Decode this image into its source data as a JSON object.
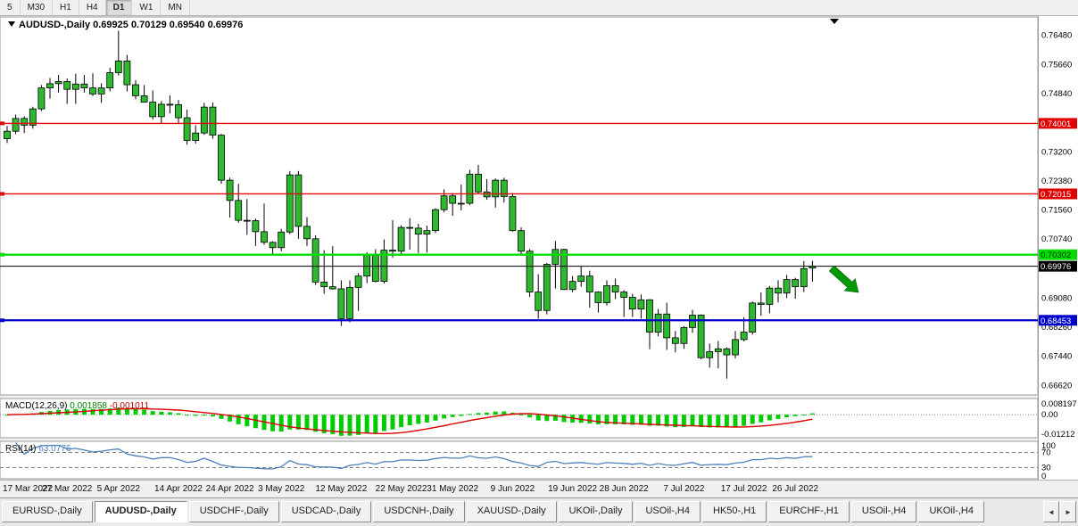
{
  "toolbar": {
    "timeframes": [
      {
        "label": "5",
        "active": false
      },
      {
        "label": "M30",
        "active": false
      },
      {
        "label": "H1",
        "active": false
      },
      {
        "label": "H4",
        "active": false
      },
      {
        "label": "D1",
        "active": true
      },
      {
        "label": "W1",
        "active": false
      },
      {
        "label": "MN",
        "active": false
      }
    ]
  },
  "chart": {
    "symbol_title": "AUDUSD-,Daily",
    "ohlc_display": {
      "open": "0.69925",
      "high": "0.70129",
      "low": "0.69540",
      "close": "0.69976"
    },
    "y_axis_labels": [
      "0.76480",
      "0.75660",
      "0.74840",
      "0.73200",
      "0.72380",
      "0.71560",
      "0.70740",
      "0.69080",
      "0.68260",
      "0.67440",
      "0.66620"
    ],
    "levels": [
      {
        "name": "resistance-level-1",
        "label": "0.74001",
        "value": 0.74001,
        "color": "#e00000",
        "text_color": "#ffffff",
        "width": 1.4
      },
      {
        "name": "resistance-level-2",
        "label": "0.72015",
        "value": 0.72015,
        "color": "#e00000",
        "text_color": "#ffffff",
        "width": 1.4
      },
      {
        "name": "breakout-level",
        "label": "0.70302",
        "value": 0.70302,
        "color": "#00dc00",
        "text_color": "#003300",
        "width": 2.4
      },
      {
        "name": "support-level",
        "label": "0.68453",
        "value": 0.68453,
        "color": "#0000cc",
        "text_color": "#ffffff",
        "width": 2.2
      }
    ],
    "current_price": {
      "value": 0.69976,
      "label": "0.69976",
      "color": "#000000"
    },
    "annotation_arrow": {
      "color": "#009900"
    }
  },
  "chart_data": {
    "type": "candlestick",
    "symbol": "AUDUSD",
    "timeframe": "Daily",
    "price_range": [
      0.6635,
      0.77
    ],
    "ohlc": [
      [
        0.7357,
        0.7393,
        0.7345,
        0.7378
      ],
      [
        0.7378,
        0.7425,
        0.737,
        0.7414
      ],
      [
        0.7414,
        0.742,
        0.7373,
        0.7395
      ],
      [
        0.7395,
        0.7447,
        0.7385,
        0.7441
      ],
      [
        0.7441,
        0.7508,
        0.7435,
        0.75
      ],
      [
        0.75,
        0.7528,
        0.747,
        0.7512
      ],
      [
        0.7512,
        0.7537,
        0.7487,
        0.7518
      ],
      [
        0.7518,
        0.7527,
        0.7455,
        0.7496
      ],
      [
        0.7496,
        0.754,
        0.7455,
        0.7511
      ],
      [
        0.7511,
        0.7537,
        0.7487,
        0.75
      ],
      [
        0.75,
        0.7541,
        0.7477,
        0.7483
      ],
      [
        0.7483,
        0.7513,
        0.7458,
        0.75
      ],
      [
        0.75,
        0.7557,
        0.749,
        0.7543
      ],
      [
        0.7543,
        0.7661,
        0.7535,
        0.7576
      ],
      [
        0.7576,
        0.7593,
        0.749,
        0.7509
      ],
      [
        0.7509,
        0.7522,
        0.7468,
        0.7478
      ],
      [
        0.7478,
        0.7508,
        0.7459,
        0.746
      ],
      [
        0.746,
        0.7493,
        0.7411,
        0.7419
      ],
      [
        0.7419,
        0.7463,
        0.7401,
        0.7454
      ],
      [
        0.7454,
        0.7479,
        0.7428,
        0.7453
      ],
      [
        0.7453,
        0.7466,
        0.7398,
        0.7416
      ],
      [
        0.7416,
        0.7439,
        0.734,
        0.7352
      ],
      [
        0.7352,
        0.7395,
        0.7343,
        0.7373
      ],
      [
        0.7373,
        0.7458,
        0.7368,
        0.7446
      ],
      [
        0.7446,
        0.7459,
        0.7357,
        0.7367
      ],
      [
        0.7367,
        0.737,
        0.723,
        0.724
      ],
      [
        0.724,
        0.7247,
        0.7135,
        0.7183
      ],
      [
        0.7183,
        0.723,
        0.712,
        0.7127
      ],
      [
        0.7127,
        0.7187,
        0.7086,
        0.7126
      ],
      [
        0.7126,
        0.7132,
        0.7055,
        0.7095
      ],
      [
        0.7095,
        0.7174,
        0.7058,
        0.7065
      ],
      [
        0.7065,
        0.7068,
        0.7029,
        0.705
      ],
      [
        0.705,
        0.7103,
        0.704,
        0.7094
      ],
      [
        0.7094,
        0.7266,
        0.7088,
        0.7255
      ],
      [
        0.7255,
        0.7266,
        0.7075,
        0.711
      ],
      [
        0.711,
        0.7136,
        0.7055,
        0.7075
      ],
      [
        0.7075,
        0.7085,
        0.6945,
        0.6953
      ],
      [
        0.6953,
        0.7043,
        0.692,
        0.694
      ],
      [
        0.694,
        0.7054,
        0.6932,
        0.6934
      ],
      [
        0.6934,
        0.6958,
        0.6829,
        0.685
      ],
      [
        0.685,
        0.6958,
        0.684,
        0.6938
      ],
      [
        0.6938,
        0.6978,
        0.6872,
        0.697
      ],
      [
        0.697,
        0.7037,
        0.695,
        0.7028
      ],
      [
        0.7028,
        0.7046,
        0.6952,
        0.6955
      ],
      [
        0.6955,
        0.7073,
        0.6949,
        0.7043
      ],
      [
        0.7043,
        0.7127,
        0.7022,
        0.704
      ],
      [
        0.704,
        0.7113,
        0.7033,
        0.7107
      ],
      [
        0.7107,
        0.7133,
        0.7044,
        0.7105
      ],
      [
        0.7105,
        0.7117,
        0.7035,
        0.7088
      ],
      [
        0.7088,
        0.7112,
        0.7036,
        0.7098
      ],
      [
        0.7098,
        0.7161,
        0.7091,
        0.7157
      ],
      [
        0.7157,
        0.7214,
        0.715,
        0.7196
      ],
      [
        0.7196,
        0.7204,
        0.714,
        0.7175
      ],
      [
        0.7175,
        0.7228,
        0.7155,
        0.7175
      ],
      [
        0.7175,
        0.7269,
        0.717,
        0.7257
      ],
      [
        0.7257,
        0.7283,
        0.72,
        0.7207
      ],
      [
        0.7207,
        0.7243,
        0.7185,
        0.7193
      ],
      [
        0.7193,
        0.7245,
        0.7163,
        0.724
      ],
      [
        0.724,
        0.7247,
        0.7177,
        0.7194
      ],
      [
        0.7194,
        0.7204,
        0.7095,
        0.7098
      ],
      [
        0.7098,
        0.7107,
        0.7032,
        0.704
      ],
      [
        0.704,
        0.7046,
        0.6911,
        0.6925
      ],
      [
        0.6925,
        0.6975,
        0.685,
        0.6873
      ],
      [
        0.6873,
        0.7007,
        0.6862,
        0.7003
      ],
      [
        0.7003,
        0.7069,
        0.6935,
        0.7045
      ],
      [
        0.7045,
        0.7047,
        0.6933,
        0.6932
      ],
      [
        0.6932,
        0.697,
        0.6925,
        0.6955
      ],
      [
        0.6955,
        0.6997,
        0.694,
        0.697
      ],
      [
        0.697,
        0.6985,
        0.6881,
        0.6925
      ],
      [
        0.6925,
        0.6927,
        0.6867,
        0.6895
      ],
      [
        0.6895,
        0.6958,
        0.6887,
        0.6943
      ],
      [
        0.6943,
        0.6963,
        0.6905,
        0.6925
      ],
      [
        0.6925,
        0.693,
        0.6855,
        0.691
      ],
      [
        0.691,
        0.692,
        0.6855,
        0.6877
      ],
      [
        0.6877,
        0.6918,
        0.685,
        0.6903
      ],
      [
        0.6903,
        0.6905,
        0.6764,
        0.6812
      ],
      [
        0.6812,
        0.6877,
        0.68,
        0.6863
      ],
      [
        0.6863,
        0.6895,
        0.6762,
        0.6796
      ],
      [
        0.6796,
        0.6815,
        0.6755,
        0.678
      ],
      [
        0.678,
        0.6829,
        0.6765,
        0.6825
      ],
      [
        0.6825,
        0.6875,
        0.681,
        0.686
      ],
      [
        0.686,
        0.6862,
        0.6735,
        0.674
      ],
      [
        0.674,
        0.678,
        0.6712,
        0.6757
      ],
      [
        0.6757,
        0.6787,
        0.671,
        0.6765
      ],
      [
        0.6765,
        0.6769,
        0.6681,
        0.6748
      ],
      [
        0.6748,
        0.6815,
        0.6738,
        0.6791
      ],
      [
        0.6791,
        0.6854,
        0.6786,
        0.6812
      ],
      [
        0.6812,
        0.6898,
        0.6805,
        0.6894
      ],
      [
        0.6894,
        0.6924,
        0.6858,
        0.689
      ],
      [
        0.689,
        0.6942,
        0.6865,
        0.6936
      ],
      [
        0.6936,
        0.6958,
        0.6896,
        0.6922
      ],
      [
        0.6922,
        0.6973,
        0.6908,
        0.696
      ],
      [
        0.696,
        0.6965,
        0.6906,
        0.694
      ],
      [
        0.694,
        0.7012,
        0.6925,
        0.6991
      ],
      [
        0.69925,
        0.70129,
        0.6954,
        0.69976
      ]
    ],
    "x_axis_labels": [
      {
        "label": "17 Mar 2022",
        "index": 0
      },
      {
        "label": "27 Mar 2022",
        "index": 7
      },
      {
        "label": "5 Apr 2022",
        "index": 13
      },
      {
        "label": "14 Apr 2022",
        "index": 20
      },
      {
        "label": "24 Apr 2022",
        "index": 26
      },
      {
        "label": "3 May 2022",
        "index": 32
      },
      {
        "label": "12 May 2022",
        "index": 39
      },
      {
        "label": "22 May 2022",
        "index": 46
      },
      {
        "label": "31 May 2022",
        "index": 52
      },
      {
        "label": "9 Jun 2022",
        "index": 59
      },
      {
        "label": "19 Jun 2022",
        "index": 66
      },
      {
        "label": "28 Jun 2022",
        "index": 72
      },
      {
        "label": "7 Jul 2022",
        "index": 79
      },
      {
        "label": "17 Jul 2022",
        "index": 86
      },
      {
        "label": "26 Jul 2022",
        "index": 92
      }
    ]
  },
  "macd": {
    "label": "MACD(12,26,9)",
    "value_main": "0.001858",
    "value_signal": "-0.001011",
    "scale_labels": [
      "0.008197",
      "0.00",
      "-0.01212"
    ],
    "range": [
      -0.0135,
      0.0095
    ]
  },
  "rsi": {
    "label": "RSI(14)",
    "value": "63.0776",
    "scale_labels": [
      "100",
      "70",
      "30",
      "0"
    ],
    "levels": [
      70,
      30
    ],
    "color": "#4f81bd"
  },
  "tabs": {
    "items": [
      {
        "label": "EURUSD-,Daily",
        "active": false
      },
      {
        "label": "AUDUSD-,Daily",
        "active": true
      },
      {
        "label": "USDCHF-,Daily",
        "active": false
      },
      {
        "label": "USDCAD-,Daily",
        "active": false
      },
      {
        "label": "USDCNH-,Daily",
        "active": false
      },
      {
        "label": "XAUUSD-,Daily",
        "active": false
      },
      {
        "label": "UKOil-,Daily",
        "active": false
      },
      {
        "label": "USOil-,H4",
        "active": false
      },
      {
        "label": "HK50-,H1",
        "active": false
      },
      {
        "label": "EURCHF-,H1",
        "active": false
      },
      {
        "label": "USOil-,H4",
        "active": false
      },
      {
        "label": "UKOil-,H4",
        "active": false
      }
    ],
    "scroll_buttons": [
      "◄",
      "►"
    ]
  },
  "colors": {
    "frame_bg": "#f0f0f0",
    "chart_bg": "#ffffff",
    "axis_bg": "#ffffff",
    "panel_border": "#9a9a9a",
    "candle_fill": "#2eb82e",
    "candle_border": "#000000",
    "macd_histogram": "#00cc00",
    "macd_signal": "#dd0000"
  }
}
